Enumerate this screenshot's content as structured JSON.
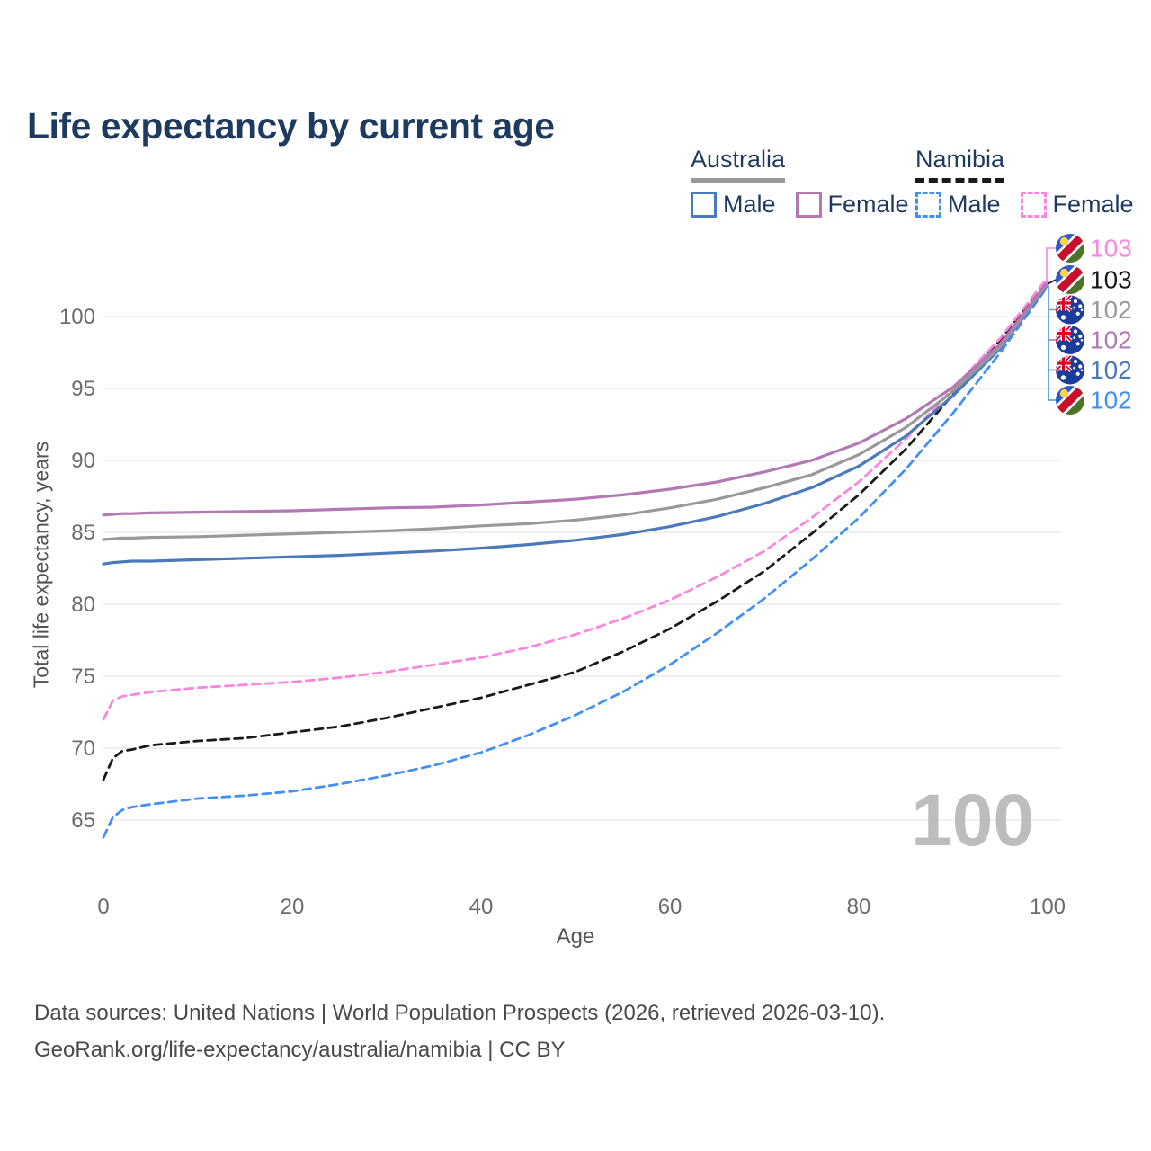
{
  "page": {
    "title": "Life expectancy by current age"
  },
  "legend": {
    "groups": [
      {
        "country": "Australia",
        "line_style": "solid",
        "underline_color": "#999999",
        "items": [
          {
            "label": "Male",
            "color": "#4a7ab9"
          },
          {
            "label": "Female",
            "color": "#b379b3"
          }
        ]
      },
      {
        "country": "Namibia",
        "line_style": "dashed",
        "underline_color": "#1a1a1a",
        "items": [
          {
            "label": "Male",
            "color": "#4290f5"
          },
          {
            "label": "Female",
            "color": "#fc85e0"
          }
        ]
      }
    ]
  },
  "chart_data": {
    "type": "line",
    "title": "Life expectancy by current age",
    "xlabel": "Age",
    "ylabel": "Total life expectancy, years",
    "x_ticks": [
      0,
      20,
      40,
      60,
      80,
      100
    ],
    "y_ticks": [
      65,
      70,
      75,
      80,
      85,
      90,
      95,
      100
    ],
    "xlim": [
      0,
      100
    ],
    "ylim": [
      62,
      103.5
    ],
    "grid": "horizontal-only",
    "age_indicator": "100",
    "x": [
      0,
      1,
      2,
      3,
      5,
      10,
      15,
      20,
      25,
      30,
      35,
      40,
      45,
      50,
      55,
      60,
      65,
      70,
      75,
      80,
      85,
      90,
      95,
      100
    ],
    "series": [
      {
        "name": "Australia Female",
        "country": "Australia",
        "sex": "Female",
        "color": "#b379b3",
        "dash": false,
        "values": [
          86.2,
          86.25,
          86.3,
          86.3,
          86.35,
          86.4,
          86.45,
          86.5,
          86.6,
          86.7,
          86.75,
          86.9,
          87.1,
          87.3,
          87.6,
          88.0,
          88.5,
          89.2,
          90.0,
          91.2,
          92.9,
          95.1,
          98.1,
          102.4
        ]
      },
      {
        "name": "Australia Both sexes",
        "country": "Australia",
        "sex": "Both",
        "color": "#999999",
        "dash": false,
        "values": [
          84.5,
          84.55,
          84.6,
          84.6,
          84.65,
          84.7,
          84.8,
          84.9,
          85.0,
          85.1,
          85.25,
          85.45,
          85.6,
          85.85,
          86.2,
          86.7,
          87.3,
          88.1,
          89.0,
          90.4,
          92.3,
          94.8,
          97.9,
          102.3
        ]
      },
      {
        "name": "Australia Male",
        "country": "Australia",
        "sex": "Male",
        "color": "#4a7ab9",
        "dash": false,
        "values": [
          82.8,
          82.9,
          82.95,
          83.0,
          83.0,
          83.1,
          83.2,
          83.3,
          83.4,
          83.55,
          83.7,
          83.9,
          84.15,
          84.45,
          84.85,
          85.4,
          86.1,
          87.0,
          88.1,
          89.6,
          91.7,
          94.5,
          97.8,
          102.2
        ]
      },
      {
        "name": "Namibia Female",
        "country": "Namibia",
        "sex": "Female",
        "color": "#fc85e0",
        "dash": true,
        "values": [
          72.0,
          73.3,
          73.6,
          73.7,
          73.9,
          74.2,
          74.4,
          74.6,
          74.9,
          75.3,
          75.8,
          76.3,
          77.0,
          77.9,
          79.0,
          80.3,
          81.9,
          83.7,
          86.0,
          88.5,
          91.5,
          95.0,
          98.5,
          102.7
        ]
      },
      {
        "name": "Namibia Both sexes",
        "country": "Namibia",
        "sex": "Both",
        "color": "#1a1a1a",
        "dash": true,
        "values": [
          67.8,
          69.3,
          69.8,
          69.9,
          70.2,
          70.5,
          70.7,
          71.1,
          71.5,
          72.1,
          72.8,
          73.5,
          74.4,
          75.3,
          76.7,
          78.3,
          80.2,
          82.3,
          84.9,
          87.6,
          90.8,
          94.6,
          98.4,
          102.5
        ]
      },
      {
        "name": "Namibia Male",
        "country": "Namibia",
        "sex": "Male",
        "color": "#4290f5",
        "dash": true,
        "values": [
          63.8,
          65.2,
          65.7,
          65.9,
          66.1,
          66.5,
          66.7,
          67.0,
          67.5,
          68.1,
          68.8,
          69.7,
          70.9,
          72.3,
          73.9,
          75.8,
          78.0,
          80.4,
          83.1,
          86.0,
          89.4,
          93.3,
          97.5,
          102.1
        ]
      }
    ],
    "end_labels": [
      {
        "text": "103",
        "series": "Namibia Female",
        "color": "#fc85e0",
        "flag": "namibia"
      },
      {
        "text": "103",
        "series": "Namibia Both sexes",
        "color": "#1a1a1a",
        "flag": "namibia"
      },
      {
        "text": "102",
        "series": "Australia Both sexes",
        "color": "#999999",
        "flag": "australia"
      },
      {
        "text": "102",
        "series": "Australia Female",
        "color": "#b379b3",
        "flag": "australia"
      },
      {
        "text": "102",
        "series": "Australia Male",
        "color": "#4a7ab9",
        "flag": "australia"
      },
      {
        "text": "102",
        "series": "Namibia Male",
        "color": "#4290f5",
        "flag": "namibia"
      }
    ]
  },
  "footer": {
    "line1": "Data sources: United Nations | World Population Prospects (2026, retrieved 2026-03-10).",
    "line2": "GeoRank.org/life-expectancy/australia/namibia | CC BY"
  }
}
